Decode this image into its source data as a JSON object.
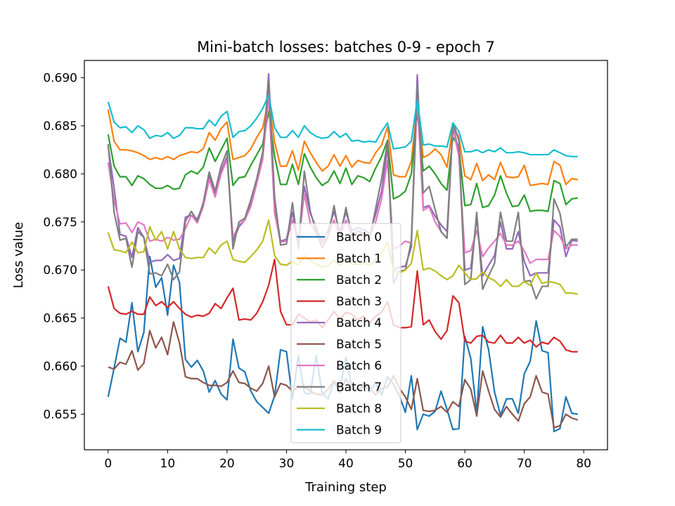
{
  "chart_data": {
    "type": "line",
    "title": "Mini-batch losses: batches 0-9 - epoch 7",
    "xlabel": "Training step",
    "ylabel": "Loss value",
    "xlim": [
      -4,
      84
    ],
    "ylim": [
      0.6513,
      0.6918
    ],
    "xticks": [
      0,
      10,
      20,
      30,
      40,
      50,
      60,
      70,
      80
    ],
    "xtick_labels": [
      "0",
      "10",
      "20",
      "30",
      "40",
      "50",
      "60",
      "70",
      "80"
    ],
    "yticks": [
      0.655,
      0.66,
      0.665,
      0.67,
      0.675,
      0.68,
      0.685,
      0.69
    ],
    "ytick_labels": [
      "0.655",
      "0.660",
      "0.665",
      "0.670",
      "0.675",
      "0.680",
      "0.685",
      "0.690"
    ],
    "grid": false,
    "legend_position": "bottom-center",
    "series": [
      {
        "name": "Batch 0",
        "color": "#1f77b4",
        "values": [
          0.6568,
          0.6598,
          0.6629,
          0.6625,
          0.6666,
          0.6615,
          0.6635,
          0.6714,
          0.6682,
          0.6692,
          0.6653,
          0.6705,
          0.6687,
          0.6607,
          0.6599,
          0.6606,
          0.6595,
          0.6573,
          0.6585,
          0.6571,
          0.6565,
          0.6628,
          0.6598,
          0.6594,
          0.6574,
          0.6563,
          0.6557,
          0.6551,
          0.6569,
          0.6617,
          0.6615,
          0.6566,
          0.6611,
          0.6572,
          0.6571,
          0.6611,
          0.6572,
          0.6566,
          0.6584,
          0.6578,
          0.6609,
          0.6578,
          0.6575,
          0.6582,
          0.6573,
          0.6583,
          0.657,
          0.6589,
          0.6581,
          0.6569,
          0.6552,
          0.659,
          0.6534,
          0.655,
          0.6548,
          0.6553,
          0.6574,
          0.6555,
          0.6534,
          0.6535,
          0.6631,
          0.6608,
          0.6551,
          0.6641,
          0.6617,
          0.6573,
          0.6549,
          0.6566,
          0.6566,
          0.6551,
          0.6592,
          0.6605,
          0.6647,
          0.6616,
          0.6614,
          0.6532,
          0.6535,
          0.6568,
          0.6551,
          0.655
        ]
      },
      {
        "name": "Batch 1",
        "color": "#ff7f0e",
        "values": [
          0.6867,
          0.6834,
          0.6825,
          0.6825,
          0.6824,
          0.6822,
          0.6819,
          0.6815,
          0.6817,
          0.6815,
          0.6818,
          0.6815,
          0.6819,
          0.6821,
          0.6823,
          0.6822,
          0.6826,
          0.6843,
          0.6835,
          0.6847,
          0.6854,
          0.6815,
          0.6817,
          0.6819,
          0.6826,
          0.6838,
          0.6848,
          0.6878,
          0.6833,
          0.6808,
          0.6808,
          0.6824,
          0.6804,
          0.6834,
          0.6822,
          0.6812,
          0.6803,
          0.6808,
          0.682,
          0.6808,
          0.6819,
          0.6807,
          0.6814,
          0.6812,
          0.6811,
          0.6822,
          0.683,
          0.6849,
          0.6799,
          0.6797,
          0.6797,
          0.6813,
          0.6871,
          0.6817,
          0.682,
          0.6826,
          0.682,
          0.6807,
          0.685,
          0.6838,
          0.6798,
          0.6794,
          0.6811,
          0.6793,
          0.6799,
          0.6794,
          0.6812,
          0.6797,
          0.6796,
          0.6797,
          0.6809,
          0.6788,
          0.6789,
          0.679,
          0.6789,
          0.6813,
          0.6809,
          0.6789,
          0.6795,
          0.6794
        ]
      },
      {
        "name": "Batch 2",
        "color": "#2ca02c",
        "values": [
          0.6841,
          0.6808,
          0.6797,
          0.6797,
          0.6788,
          0.6798,
          0.6795,
          0.6789,
          0.6785,
          0.6785,
          0.6788,
          0.6784,
          0.6785,
          0.6799,
          0.6803,
          0.68,
          0.6807,
          0.6827,
          0.6813,
          0.6825,
          0.6837,
          0.6788,
          0.6796,
          0.6797,
          0.6809,
          0.682,
          0.6831,
          0.6865,
          0.6818,
          0.6789,
          0.6789,
          0.681,
          0.6789,
          0.6821,
          0.6807,
          0.6796,
          0.6788,
          0.6792,
          0.6803,
          0.679,
          0.6806,
          0.6789,
          0.6798,
          0.6796,
          0.6792,
          0.6806,
          0.6818,
          0.6835,
          0.6774,
          0.6777,
          0.6782,
          0.68,
          0.6865,
          0.6803,
          0.6808,
          0.68,
          0.679,
          0.6783,
          0.6838,
          0.6828,
          0.6767,
          0.6768,
          0.679,
          0.6765,
          0.6767,
          0.6778,
          0.6798,
          0.678,
          0.6766,
          0.6767,
          0.6778,
          0.6761,
          0.6762,
          0.6762,
          0.6761,
          0.6793,
          0.679,
          0.6768,
          0.6774,
          0.6775
        ]
      },
      {
        "name": "Batch 3",
        "color": "#d62728",
        "values": [
          0.6683,
          0.666,
          0.6655,
          0.6654,
          0.6657,
          0.6654,
          0.6654,
          0.6672,
          0.6663,
          0.6667,
          0.6661,
          0.6667,
          0.666,
          0.6654,
          0.6651,
          0.6653,
          0.6652,
          0.6655,
          0.6665,
          0.666,
          0.6671,
          0.6681,
          0.6648,
          0.6649,
          0.6648,
          0.6655,
          0.6667,
          0.6684,
          0.6711,
          0.6657,
          0.6643,
          0.6643,
          0.6654,
          0.665,
          0.6646,
          0.6648,
          0.664,
          0.6648,
          0.6657,
          0.6649,
          0.6656,
          0.6654,
          0.6648,
          0.6652,
          0.6645,
          0.6652,
          0.6656,
          0.6667,
          0.6643,
          0.664,
          0.664,
          0.6641,
          0.6699,
          0.6643,
          0.6648,
          0.6636,
          0.6628,
          0.6637,
          0.6673,
          0.6666,
          0.6626,
          0.6624,
          0.6631,
          0.6632,
          0.6625,
          0.6624,
          0.6632,
          0.6624,
          0.6624,
          0.663,
          0.6624,
          0.6627,
          0.662,
          0.6625,
          0.6623,
          0.663,
          0.6626,
          0.6617,
          0.6615,
          0.6615
        ]
      },
      {
        "name": "Batch 4",
        "color": "#9467bd",
        "values": [
          0.6829,
          0.6785,
          0.6737,
          0.6735,
          0.6713,
          0.6744,
          0.6734,
          0.6708,
          0.671,
          0.671,
          0.6716,
          0.671,
          0.6712,
          0.6755,
          0.6757,
          0.6753,
          0.6768,
          0.6798,
          0.6778,
          0.6803,
          0.6818,
          0.673,
          0.6745,
          0.6752,
          0.677,
          0.6793,
          0.6817,
          0.6904,
          0.6769,
          0.673,
          0.6732,
          0.676,
          0.6728,
          0.6787,
          0.6759,
          0.6744,
          0.673,
          0.6741,
          0.6761,
          0.674,
          0.676,
          0.6741,
          0.6744,
          0.6742,
          0.6738,
          0.6758,
          0.6782,
          0.6828,
          0.67,
          0.6703,
          0.6704,
          0.6724,
          0.6903,
          0.6765,
          0.6767,
          0.6756,
          0.6747,
          0.674,
          0.685,
          0.6823,
          0.67,
          0.6702,
          0.6754,
          0.6694,
          0.6705,
          0.6715,
          0.675,
          0.6722,
          0.6722,
          0.674,
          0.6709,
          0.6694,
          0.6697,
          0.6697,
          0.6697,
          0.6752,
          0.6745,
          0.6714,
          0.6731,
          0.673
        ]
      },
      {
        "name": "Batch 5",
        "color": "#8c564b",
        "values": [
          0.6599,
          0.6597,
          0.6604,
          0.6602,
          0.6616,
          0.6596,
          0.6603,
          0.6637,
          0.6619,
          0.663,
          0.6612,
          0.6646,
          0.6624,
          0.6589,
          0.6587,
          0.6587,
          0.6583,
          0.658,
          0.658,
          0.6579,
          0.6583,
          0.6595,
          0.6583,
          0.6582,
          0.6577,
          0.6574,
          0.6582,
          0.66,
          0.6568,
          0.6582,
          0.658,
          0.6574,
          0.6579,
          0.6578,
          0.6574,
          0.6571,
          0.657,
          0.6576,
          0.6585,
          0.6572,
          0.6587,
          0.6576,
          0.6575,
          0.6579,
          0.6578,
          0.657,
          0.6577,
          0.6578,
          0.659,
          0.6577,
          0.6568,
          0.6555,
          0.6587,
          0.6554,
          0.6553,
          0.6554,
          0.6558,
          0.6552,
          0.6563,
          0.6558,
          0.6586,
          0.6576,
          0.6548,
          0.6595,
          0.6574,
          0.6555,
          0.6547,
          0.6558,
          0.655,
          0.6543,
          0.6561,
          0.6568,
          0.659,
          0.6573,
          0.6571,
          0.6536,
          0.6538,
          0.655,
          0.6546,
          0.6544
        ]
      },
      {
        "name": "Batch 6",
        "color": "#e377c2",
        "values": [
          0.6812,
          0.6772,
          0.6748,
          0.6749,
          0.6739,
          0.675,
          0.6747,
          0.673,
          0.6732,
          0.673,
          0.6734,
          0.6731,
          0.6732,
          0.6743,
          0.6757,
          0.6749,
          0.6766,
          0.6794,
          0.6776,
          0.68,
          0.6815,
          0.6734,
          0.6747,
          0.6752,
          0.6766,
          0.679,
          0.6815,
          0.688,
          0.6759,
          0.6729,
          0.673,
          0.6752,
          0.6727,
          0.6779,
          0.6749,
          0.6738,
          0.6728,
          0.6736,
          0.6752,
          0.6733,
          0.6752,
          0.6736,
          0.6738,
          0.6737,
          0.6734,
          0.675,
          0.6774,
          0.6814,
          0.6722,
          0.6725,
          0.673,
          0.6728,
          0.688,
          0.6762,
          0.6766,
          0.675,
          0.674,
          0.6733,
          0.6848,
          0.6818,
          0.6718,
          0.672,
          0.6741,
          0.6714,
          0.6723,
          0.673,
          0.6738,
          0.6726,
          0.6726,
          0.673,
          0.672,
          0.6707,
          0.6711,
          0.6711,
          0.6711,
          0.6741,
          0.6735,
          0.6722,
          0.6726,
          0.6726
        ]
      },
      {
        "name": "Batch 7",
        "color": "#7f7f7f",
        "values": [
          0.6831,
          0.676,
          0.6731,
          0.6733,
          0.6703,
          0.674,
          0.6734,
          0.6696,
          0.6697,
          0.6694,
          0.6706,
          0.669,
          0.6698,
          0.6751,
          0.6761,
          0.6751,
          0.677,
          0.6802,
          0.6782,
          0.6808,
          0.6824,
          0.6722,
          0.675,
          0.6754,
          0.6773,
          0.6795,
          0.6823,
          0.6896,
          0.6776,
          0.6726,
          0.6727,
          0.677,
          0.6722,
          0.6803,
          0.6761,
          0.674,
          0.6723,
          0.6735,
          0.6767,
          0.6733,
          0.6765,
          0.6736,
          0.6741,
          0.6738,
          0.6733,
          0.6764,
          0.6795,
          0.6834,
          0.6686,
          0.6699,
          0.67,
          0.673,
          0.6892,
          0.678,
          0.6787,
          0.6763,
          0.674,
          0.6733,
          0.6853,
          0.6835,
          0.6685,
          0.669,
          0.676,
          0.668,
          0.6694,
          0.6707,
          0.676,
          0.673,
          0.673,
          0.676,
          0.6688,
          0.6689,
          0.667,
          0.6683,
          0.6683,
          0.6774,
          0.6759,
          0.6724,
          0.6732,
          0.6732
        ]
      },
      {
        "name": "Batch 8",
        "color": "#bcbd22",
        "values": [
          0.6739,
          0.6721,
          0.672,
          0.6718,
          0.6729,
          0.6718,
          0.6719,
          0.6745,
          0.6731,
          0.674,
          0.6722,
          0.674,
          0.6722,
          0.6713,
          0.6712,
          0.6713,
          0.6713,
          0.6723,
          0.6717,
          0.6726,
          0.673,
          0.6711,
          0.6709,
          0.6708,
          0.6714,
          0.6721,
          0.673,
          0.6752,
          0.6715,
          0.6706,
          0.6705,
          0.6709,
          0.6705,
          0.6715,
          0.671,
          0.6706,
          0.6703,
          0.6705,
          0.671,
          0.6705,
          0.6712,
          0.6706,
          0.6706,
          0.6707,
          0.6705,
          0.6711,
          0.6717,
          0.6729,
          0.6699,
          0.6697,
          0.67,
          0.6707,
          0.6741,
          0.67,
          0.6702,
          0.6699,
          0.6694,
          0.669,
          0.6694,
          0.6705,
          0.6697,
          0.669,
          0.6691,
          0.6698,
          0.6692,
          0.6689,
          0.6683,
          0.669,
          0.6683,
          0.6683,
          0.6688,
          0.6684,
          0.6697,
          0.6686,
          0.6688,
          0.6687,
          0.6685,
          0.6676,
          0.6676,
          0.6675
        ]
      },
      {
        "name": "Batch 9",
        "color": "#17becf",
        "values": [
          0.6875,
          0.6854,
          0.6848,
          0.6849,
          0.6843,
          0.685,
          0.6846,
          0.6837,
          0.684,
          0.6839,
          0.6843,
          0.6837,
          0.684,
          0.6848,
          0.6848,
          0.6847,
          0.6847,
          0.6856,
          0.685,
          0.686,
          0.6865,
          0.6838,
          0.6844,
          0.6845,
          0.685,
          0.6858,
          0.6868,
          0.6882,
          0.6848,
          0.6838,
          0.6838,
          0.6845,
          0.6838,
          0.685,
          0.6843,
          0.6839,
          0.6837,
          0.6838,
          0.6844,
          0.6838,
          0.6842,
          0.6834,
          0.6835,
          0.6833,
          0.6834,
          0.6833,
          0.6844,
          0.6853,
          0.6826,
          0.6827,
          0.6828,
          0.6834,
          0.6877,
          0.683,
          0.6831,
          0.6829,
          0.6829,
          0.6828,
          0.6853,
          0.6844,
          0.6823,
          0.6823,
          0.6825,
          0.6822,
          0.6825,
          0.6823,
          0.6827,
          0.6822,
          0.6822,
          0.6823,
          0.6822,
          0.682,
          0.682,
          0.682,
          0.682,
          0.6825,
          0.6822,
          0.6819,
          0.6818,
          0.6818
        ]
      }
    ]
  }
}
